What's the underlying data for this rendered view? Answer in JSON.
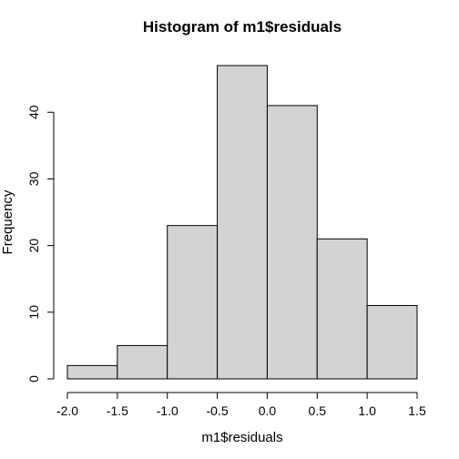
{
  "chart_data": {
    "type": "bar",
    "title": "Histogram of m1$residuals",
    "xlabel": "m1$residuals",
    "ylabel": "Frequency",
    "bin_edges": [
      -2.0,
      -1.5,
      -1.0,
      -0.5,
      0.0,
      0.5,
      1.0,
      1.5
    ],
    "values": [
      2,
      5,
      23,
      47,
      41,
      21,
      11
    ],
    "xlim": [
      -2.0,
      1.5
    ],
    "ylim": [
      0,
      47
    ],
    "x_ticks": [
      -2.0,
      -1.5,
      -1.0,
      -0.5,
      0.0,
      0.5,
      1.0,
      1.5
    ],
    "x_tick_labels": [
      "-2.0",
      "-1.5",
      "-1.0",
      "-0.5",
      "0.0",
      "0.5",
      "1.0",
      "1.5"
    ],
    "y_ticks": [
      0,
      10,
      20,
      30,
      40
    ],
    "y_tick_labels": [
      "0",
      "10",
      "20",
      "30",
      "40"
    ],
    "bar_color": "#d3d3d3",
    "edge_color": "#000000",
    "grid": false
  }
}
